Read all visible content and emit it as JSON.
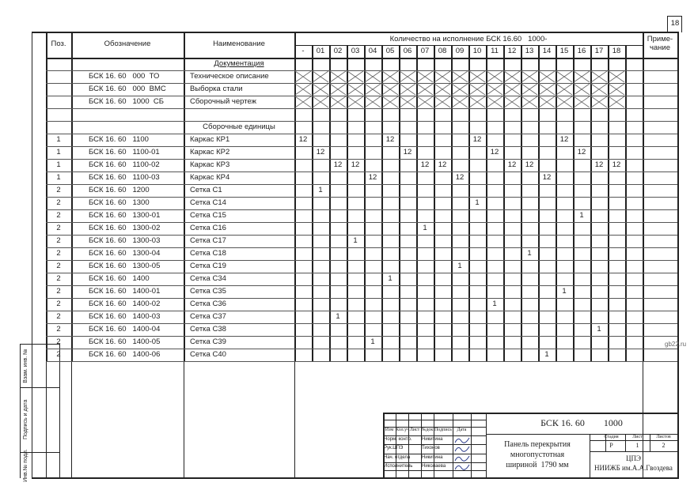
{
  "sheet_number": "18",
  "watermark": "gb22.ru",
  "header": {
    "pos": "Поз.",
    "designation": "Обозначение",
    "name": "Наименование",
    "quantity": "Количество на исполнение БСК 16.60   1000-",
    "note": "Приме-\nчание",
    "variants": [
      "-",
      "01",
      "02",
      "03",
      "04",
      "05",
      "06",
      "07",
      "08",
      "09",
      "10",
      "11",
      "12",
      "13",
      "14",
      "15",
      "16",
      "17",
      "18",
      ""
    ]
  },
  "rows": [
    {
      "pos": "",
      "designation": "",
      "name": "Документация",
      "section": true,
      "q": {}
    },
    {
      "pos": "",
      "designation": "БСК 16. 60   000  ТО",
      "name": "Техническое описание",
      "crossed": true,
      "q": {}
    },
    {
      "pos": "",
      "designation": "БСК 16. 60   000  ВМС",
      "name": "Выборка стали",
      "crossed": true,
      "q": {}
    },
    {
      "pos": "",
      "designation": "БСК 16. 60   1000  СБ",
      "name": "Сборочный чертеж",
      "crossed": true,
      "q": {}
    },
    {
      "pos": "",
      "designation": "",
      "name": "",
      "q": {}
    },
    {
      "pos": "",
      "designation": "",
      "name": "Сборочные единицы",
      "section": true,
      "q": {}
    },
    {
      "pos": "1",
      "designation": "БСК 16. 60   1100",
      "name": "Каркас КР1",
      "q": {
        "-": "12",
        "05": "12",
        "10": "12",
        "15": "12"
      }
    },
    {
      "pos": "1",
      "designation": "БСК 16. 60   1100-01",
      "name": "Каркас КР2",
      "q": {
        "01": "12",
        "06": "12",
        "11": "12",
        "16": "12"
      }
    },
    {
      "pos": "1",
      "designation": "БСК 16. 60   1100-02",
      "name": "Каркас КР3",
      "q": {
        "02": "12",
        "03": "12",
        "07": "12",
        "08": "12",
        "12": "12",
        "13": "12",
        "17": "12",
        "18": "12"
      }
    },
    {
      "pos": "1",
      "designation": "БСК 16. 60   1100-03",
      "name": "Каркас КР4",
      "q": {
        "04": "12",
        "09": "12",
        "14": "12"
      }
    },
    {
      "pos": "2",
      "designation": "БСК 16. 60   1200",
      "name": "Сетка С1",
      "q": {
        "01": "1"
      }
    },
    {
      "pos": "2",
      "designation": "БСК 16. 60   1300",
      "name": "Сетка С14",
      "q": {
        "10": "1"
      }
    },
    {
      "pos": "2",
      "designation": "БСК 16. 60   1300-01",
      "name": "Сетка С15",
      "q": {
        "16": "1"
      }
    },
    {
      "pos": "2",
      "designation": "БСК 16. 60   1300-02",
      "name": "Сетка С16",
      "q": {
        "07": "1"
      }
    },
    {
      "pos": "2",
      "designation": "БСК 16. 60   1300-03",
      "name": "Сетка С17",
      "q": {
        "03": "1"
      }
    },
    {
      "pos": "2",
      "designation": "БСК 16. 60   1300-04",
      "name": "Сетка С18",
      "q": {
        "13": "1"
      }
    },
    {
      "pos": "2",
      "designation": "БСК 16. 60   1300-05",
      "name": "Сетка С19",
      "q": {
        "09": "1"
      }
    },
    {
      "pos": "2",
      "designation": "БСК 16. 60   1400",
      "name": "Сетка С34",
      "q": {
        "05": "1"
      }
    },
    {
      "pos": "2",
      "designation": "БСК 16. 60   1400-01",
      "name": "Сетка С35",
      "q": {
        "15": "1"
      }
    },
    {
      "pos": "2",
      "designation": "БСК 16. 60   1400-02",
      "name": "Сетка С36",
      "q": {
        "11": "1"
      }
    },
    {
      "pos": "2",
      "designation": "БСК 16. 60   1400-03",
      "name": "Сетка С37",
      "q": {
        "02": "1"
      }
    },
    {
      "pos": "2",
      "designation": "БСК 16. 60   1400-04",
      "name": "Сетка С38",
      "q": {
        "17": "1"
      }
    },
    {
      "pos": "2",
      "designation": "БСК 16. 60   1400-05",
      "name": "Сетка С39",
      "q": {
        "04": "1"
      }
    },
    {
      "pos": "2",
      "designation": "БСК 16. 60   1400-06",
      "name": "Сетка С40",
      "q": {
        "14": "1"
      }
    }
  ],
  "side_stamp": [
    "Взам. инв. №",
    "Подпись и дата",
    "Инв.№ подл."
  ],
  "title_block": {
    "code": "БСК 16. 60        1000",
    "headers": [
      "Изм",
      "Кол.уч",
      "Лист",
      "№док",
      "Подпись",
      "Дата"
    ],
    "people": [
      [
        "Норм. контр.",
        "Никитина"
      ],
      [
        "Рук.ЦПЭ",
        "Тихонов"
      ],
      [
        "Нач. отдела",
        "Никитина"
      ],
      [
        "Исполнитель",
        "Николаева"
      ]
    ],
    "title": "Панель перекрытия\nмногопустотная\nшириной  1790 мм",
    "stage_label": "Стадия",
    "sheet_label": "Лист",
    "sheets_label": "Листов",
    "stage": "Р",
    "sheet": "1",
    "sheets": "2",
    "org": "ЦПЭ\nНИИЖБ им.А.А.Гвоздева"
  }
}
